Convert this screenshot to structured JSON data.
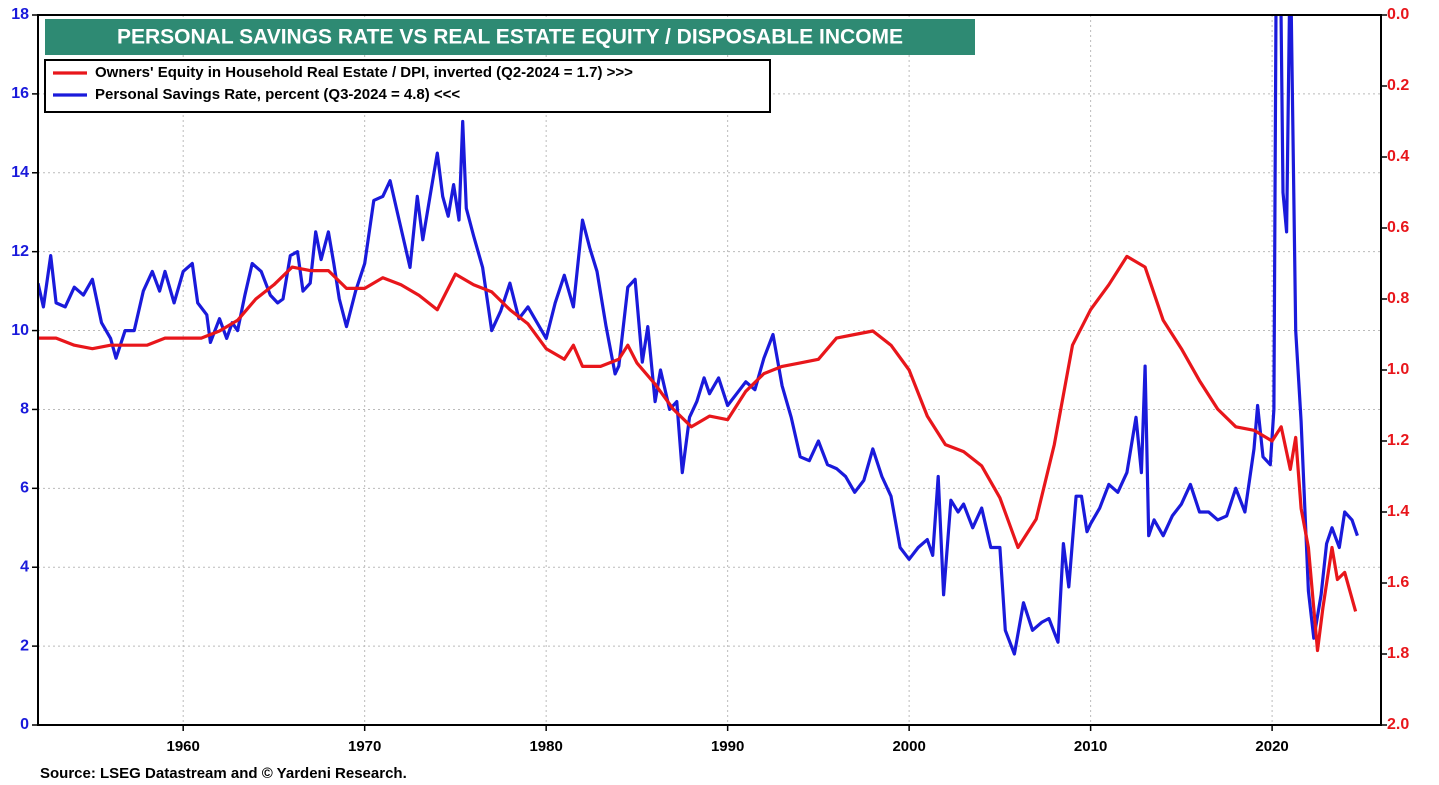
{
  "chart_data": {
    "type": "line",
    "title": "PERSONAL SAVINGS RATE VS REAL ESTATE EQUITY / DISPOSABLE INCOME",
    "source": "Source: LSEG Datastream and © Yardeni Research.",
    "xlim": [
      1952,
      2026
    ],
    "xticks": [
      1960,
      1970,
      1980,
      1990,
      2000,
      2010,
      2020
    ],
    "ylim": [
      0,
      18
    ],
    "yticks": [
      0,
      2,
      4,
      6,
      8,
      10,
      12,
      14,
      16,
      18
    ],
    "y2lim": [
      2,
      0
    ],
    "y2ticks": [
      {
        "value": 0,
        "label": "0.0"
      },
      0.2,
      0.4,
      0.6,
      0.8,
      {
        "value": 1,
        "label": "1.0"
      },
      1.2,
      1.4,
      1.6,
      1.8,
      {
        "value": 2,
        "label": "2.0"
      }
    ],
    "grid": true,
    "legend": "top-left",
    "series": [
      {
        "name": "Owners' Equity in Household Real Estate / DPI, inverted (Q2-2024 = 1.7) >>>",
        "color": "#e8161b",
        "axis": "y2",
        "x": [
          1952,
          1953,
          1954,
          1955,
          1956,
          1957,
          1958,
          1959,
          1960,
          1961,
          1962,
          1963,
          1964,
          1965,
          1966,
          1967,
          1968,
          1969,
          1970,
          1971,
          1972,
          1973,
          1974,
          1975,
          1976,
          1977,
          1978,
          1979,
          1980,
          1981,
          1981.5,
          1982,
          1983,
          1984,
          1984.5,
          1985,
          1986,
          1987,
          1988,
          1989,
          1990,
          1991,
          1992,
          1993,
          1994,
          1995,
          1996,
          1997,
          1998,
          1999,
          2000,
          2001,
          2002,
          2003,
          2004,
          2005,
          2006,
          2007,
          2008,
          2009,
          2010,
          2011,
          2012,
          2013,
          2014,
          2015,
          2016,
          2017,
          2018,
          2019,
          2020,
          2020.5,
          2021,
          2021.3,
          2021.6,
          2022,
          2022.5,
          2022.8,
          2023.3,
          2023.6,
          2024,
          2024.6
        ],
        "values": [
          0.91,
          0.91,
          0.93,
          0.94,
          0.93,
          0.93,
          0.93,
          0.91,
          0.91,
          0.91,
          0.89,
          0.86,
          0.8,
          0.76,
          0.71,
          0.72,
          0.72,
          0.77,
          0.77,
          0.74,
          0.76,
          0.79,
          0.83,
          0.73,
          0.76,
          0.78,
          0.83,
          0.87,
          0.94,
          0.97,
          0.93,
          0.99,
          0.99,
          0.97,
          0.93,
          0.98,
          1.04,
          1.11,
          1.16,
          1.13,
          1.14,
          1.06,
          1.01,
          0.99,
          0.98,
          0.97,
          0.91,
          0.9,
          0.89,
          0.93,
          1.0,
          1.13,
          1.21,
          1.23,
          1.27,
          1.36,
          1.5,
          1.42,
          1.21,
          0.93,
          0.83,
          0.76,
          0.68,
          0.71,
          0.86,
          0.94,
          1.03,
          1.11,
          1.16,
          1.17,
          1.2,
          1.16,
          1.28,
          1.19,
          1.39,
          1.5,
          1.79,
          1.67,
          1.5,
          1.59,
          1.57,
          1.68
        ]
      },
      {
        "name": "Personal Savings Rate, percent (Q3-2024 = 4.8) <<<",
        "color": "#1a1adb",
        "x": [
          1952,
          1952.3,
          1952.7,
          1953,
          1953.5,
          1954,
          1954.5,
          1955,
          1955.5,
          1956,
          1956.3,
          1956.8,
          1957.3,
          1957.8,
          1958.3,
          1958.7,
          1959,
          1959.5,
          1960,
          1960.5,
          1960.8,
          1961.3,
          1961.5,
          1962,
          1962.4,
          1962.7,
          1963,
          1963.4,
          1963.8,
          1964.3,
          1964.8,
          1965.2,
          1965.5,
          1965.9,
          1966.3,
          1966.6,
          1967,
          1967.3,
          1967.6,
          1968,
          1968.3,
          1968.6,
          1969,
          1969.5,
          1970,
          1970.5,
          1971,
          1971.4,
          1971.8,
          1972.2,
          1972.5,
          1972.9,
          1973.2,
          1973.6,
          1974,
          1974.3,
          1974.6,
          1974.9,
          1975.2,
          1975.4,
          1975.6,
          1976,
          1976.5,
          1977,
          1977.5,
          1978,
          1978.5,
          1979,
          1979.5,
          1980,
          1980.5,
          1981,
          1981.5,
          1982,
          1982.4,
          1982.8,
          1983.3,
          1983.8,
          1984,
          1984.5,
          1984.9,
          1985.3,
          1985.6,
          1986,
          1986.3,
          1986.8,
          1987.2,
          1987.5,
          1987.9,
          1988.3,
          1988.7,
          1989,
          1989.5,
          1990,
          1990.5,
          1991,
          1991.5,
          1992,
          1992.5,
          1993,
          1993.5,
          1994,
          1994.5,
          1995,
          1995.5,
          1996,
          1996.5,
          1997,
          1997.5,
          1998,
          1998.5,
          1999,
          1999.5,
          2000,
          2000.5,
          2001,
          2001.3,
          2001.6,
          2001.9,
          2002.3,
          2002.7,
          2003,
          2003.5,
          2004,
          2004.5,
          2005,
          2005.3,
          2005.8,
          2006.3,
          2006.8,
          2007.3,
          2007.7,
          2008.2,
          2008.5,
          2008.8,
          2009.2,
          2009.5,
          2009.8,
          2010,
          2010.5,
          2011,
          2011.5,
          2012,
          2012.5,
          2012.8,
          2013,
          2013.2,
          2013.5,
          2014,
          2014.5,
          2015,
          2015.5,
          2016,
          2016.5,
          2017,
          2017.5,
          2018,
          2018.5,
          2019,
          2019.2,
          2019.5,
          2019.9,
          2020.1,
          2020.3,
          2020.6,
          2020.8,
          2021,
          2021.3,
          2021.6,
          2022,
          2022.3,
          2022.7,
          2023,
          2023.3,
          2023.7,
          2024,
          2024.4,
          2024.7
        ],
        "values": [
          11.2,
          10.6,
          11.9,
          10.7,
          10.6,
          11.1,
          10.9,
          11.3,
          10.2,
          9.8,
          9.3,
          10.0,
          10.0,
          11.0,
          11.5,
          11.0,
          11.5,
          10.7,
          11.5,
          11.7,
          10.7,
          10.4,
          9.7,
          10.3,
          9.8,
          10.2,
          10.0,
          10.9,
          11.7,
          11.5,
          10.9,
          10.7,
          10.8,
          11.9,
          12.0,
          11.0,
          11.2,
          12.5,
          11.8,
          12.5,
          11.7,
          10.8,
          10.1,
          11.0,
          11.7,
          13.3,
          13.4,
          13.8,
          13.0,
          12.2,
          11.6,
          13.4,
          12.3,
          13.4,
          14.5,
          13.4,
          12.9,
          13.7,
          12.8,
          15.3,
          13.1,
          12.4,
          11.6,
          10.0,
          10.5,
          11.2,
          10.3,
          10.6,
          10.2,
          9.8,
          10.7,
          11.4,
          10.6,
          12.8,
          12.1,
          11.5,
          10.1,
          8.9,
          9.1,
          11.1,
          11.3,
          9.2,
          10.1,
          8.2,
          9.0,
          8.0,
          8.2,
          6.4,
          7.8,
          8.2,
          8.8,
          8.4,
          8.8,
          8.1,
          8.4,
          8.7,
          8.5,
          9.3,
          9.9,
          8.6,
          7.8,
          6.8,
          6.7,
          7.2,
          6.6,
          6.5,
          6.3,
          5.9,
          6.2,
          7.0,
          6.3,
          5.8,
          4.5,
          4.2,
          4.5,
          4.7,
          4.3,
          6.3,
          3.3,
          5.7,
          5.4,
          5.6,
          5.0,
          5.5,
          4.5,
          4.5,
          2.4,
          1.8,
          3.1,
          2.4,
          2.6,
          2.7,
          2.1,
          4.6,
          3.5,
          5.8,
          5.8,
          4.9,
          5.1,
          5.5,
          6.1,
          5.9,
          6.4,
          7.8,
          6.4,
          9.1,
          4.8,
          5.2,
          4.8,
          5.3,
          5.6,
          6.1,
          5.4,
          5.4,
          5.2,
          5.3,
          6.0,
          5.4,
          7.0,
          8.1,
          6.8,
          6.6,
          8.0,
          26,
          13.5,
          12.5,
          19.8,
          10.0,
          7.7,
          3.4,
          2.2,
          3.3,
          4.6,
          5.0,
          4.5,
          5.4,
          5.2,
          4.8
        ]
      }
    ]
  }
}
